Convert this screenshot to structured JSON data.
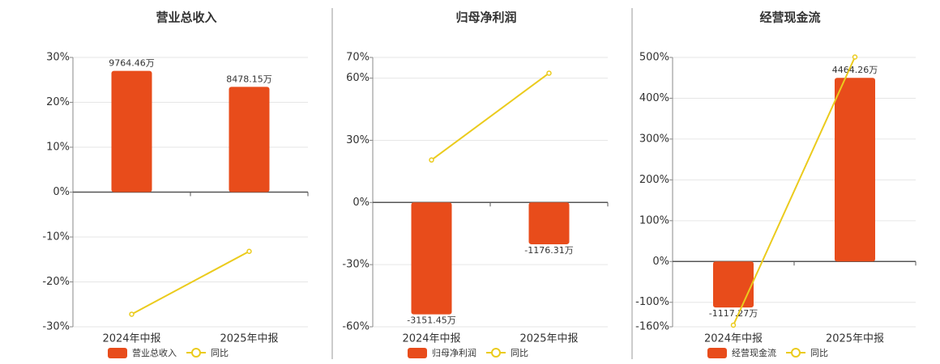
{
  "chart_data": [
    {
      "type": "bar",
      "title": "营业总收入",
      "categories": [
        "2024年中报",
        "2025年中报"
      ],
      "series": [
        {
          "name": "营业总收入",
          "type": "bar",
          "color": "#e84c1b",
          "values": [
            9764.46,
            8478.15
          ],
          "value_labels": [
            "9764.46万",
            "8478.15万"
          ]
        },
        {
          "name": "同比",
          "type": "line",
          "color": "#ebcb1d",
          "values": [
            -27.2,
            -13.2
          ]
        }
      ],
      "ylim": [
        -30,
        30
      ],
      "yticks": [
        {
          "value": -30,
          "label": "-30%"
        },
        {
          "value": -20,
          "label": "-20%"
        },
        {
          "value": -10,
          "label": "-10%"
        },
        {
          "value": 0,
          "label": "0%"
        },
        {
          "value": 10,
          "label": "10%"
        },
        {
          "value": 20,
          "label": "20%"
        },
        {
          "value": 30,
          "label": "30%"
        }
      ],
      "grid": true
    },
    {
      "type": "bar",
      "title": "归母净利润",
      "categories": [
        "2024年中报",
        "2025年中报"
      ],
      "series": [
        {
          "name": "归母净利润",
          "type": "bar",
          "color": "#e84c1b",
          "values": [
            -3151.45,
            -1176.31
          ],
          "value_labels": [
            "-3151.45万",
            "-1176.31万"
          ]
        },
        {
          "name": "同比",
          "type": "line",
          "color": "#ebcb1d",
          "values": [
            20.5,
            62.4
          ]
        }
      ],
      "ylim": [
        -60,
        70
      ],
      "yticks": [
        {
          "value": -60,
          "label": "-60%"
        },
        {
          "value": -30,
          "label": "-30%"
        },
        {
          "value": 0,
          "label": "0%"
        },
        {
          "value": 30,
          "label": "30%"
        },
        {
          "value": 60,
          "label": "60%"
        },
        {
          "value": 70,
          "label": "70%"
        }
      ],
      "grid": true
    },
    {
      "type": "bar",
      "title": "经营现金流",
      "categories": [
        "2024年中报",
        "2025年中报"
      ],
      "series": [
        {
          "name": "经营现金流",
          "type": "bar",
          "color": "#e84c1b",
          "values": [
            -1117.27,
            4464.26
          ],
          "value_labels": [
            "-1117.27万",
            "4464.26万"
          ]
        },
        {
          "name": "同比",
          "type": "line",
          "color": "#ebcb1d",
          "values": [
            -156,
            501
          ]
        }
      ],
      "ylim": [
        -160,
        500
      ],
      "yticks": [
        {
          "value": -160,
          "label": "-160%"
        },
        {
          "value": -100,
          "label": "-100%"
        },
        {
          "value": 0,
          "label": "0%"
        },
        {
          "value": 100,
          "label": "100%"
        },
        {
          "value": 200,
          "label": "200%"
        },
        {
          "value": 300,
          "label": "300%"
        },
        {
          "value": 400,
          "label": "400%"
        },
        {
          "value": 500,
          "label": "500%"
        }
      ],
      "grid": true
    }
  ]
}
